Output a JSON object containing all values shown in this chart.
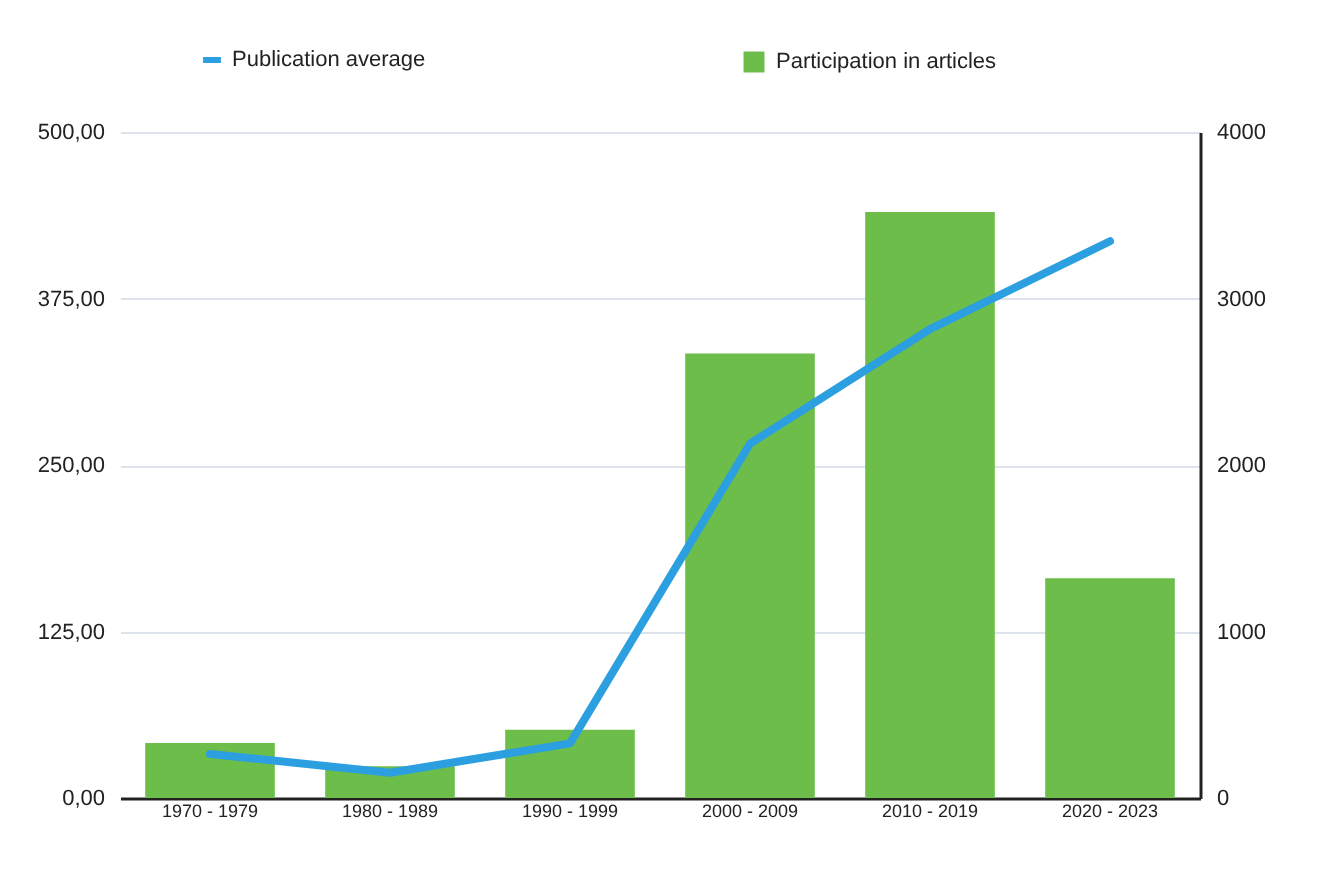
{
  "chart_data": {
    "type": "bar",
    "categories": [
      "1970 - 1979",
      "1980 - 1989",
      "1990 - 1999",
      "2000 - 2009",
      "2010 - 2019",
      "2020 - 2023"
    ],
    "series": [
      {
        "name": "Publication average",
        "type": "line",
        "color": "#2b9fe0",
        "values": [
          33,
          19,
          41,
          266,
          352,
          418
        ]
      },
      {
        "name": "Participation in articles",
        "axis": "y2",
        "color": "#6cbd4a",
        "values": [
          330,
          190,
          410,
          2670,
          3520,
          1320
        ]
      }
    ],
    "ylim": [
      0,
      500
    ],
    "yticks": [
      {
        "value": 0,
        "label": "0,00"
      },
      {
        "value": 125,
        "label": "125,00"
      },
      {
        "value": 250,
        "label": "250,00"
      },
      {
        "value": 375,
        "label": "375,00"
      },
      {
        "value": 500,
        "label": "500,00"
      }
    ],
    "y2lim": [
      0,
      4000
    ],
    "y2ticks": [
      0,
      1000,
      2000,
      3000,
      4000
    ],
    "grid": "y",
    "legend": "top"
  }
}
